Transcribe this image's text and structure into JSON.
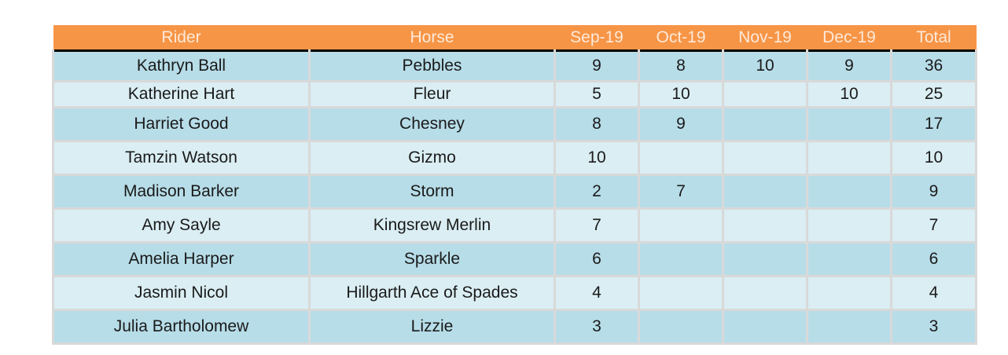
{
  "chart_data": {
    "type": "table",
    "columns": [
      "Rider",
      "Horse",
      "Sep-19",
      "Oct-19",
      "Nov-19",
      "Dec-19",
      "Total"
    ],
    "rows": [
      [
        "Kathryn Ball",
        "Pebbles",
        "9",
        "8",
        "10",
        "9",
        "36"
      ],
      [
        "Katherine Hart",
        "Fleur",
        "5",
        "10",
        "",
        "10",
        "25"
      ],
      [
        "Harriet Good",
        "Chesney",
        "8",
        "9",
        "",
        "",
        "17"
      ],
      [
        "Tamzin Watson",
        "Gizmo",
        "10",
        "",
        "",
        "",
        "10"
      ],
      [
        "Madison Barker",
        "Storm",
        "2",
        "7",
        "",
        "",
        "9"
      ],
      [
        "Amy Sayle",
        "Kingsrew Merlin",
        "7",
        "",
        "",
        "",
        "7"
      ],
      [
        "Amelia Harper",
        "Sparkle",
        "6",
        "",
        "",
        "",
        "6"
      ],
      [
        "Jasmin Nicol",
        "Hillgarth Ace of Spades",
        "4",
        "",
        "",
        "",
        "4"
      ],
      [
        "Julia Bartholomew",
        "Lizzie",
        "3",
        "",
        "",
        "",
        "3"
      ]
    ],
    "colors": {
      "header_bg": "#f79546",
      "header_text": "#fde9d9",
      "row_dark": "#b7dde8",
      "row_light": "#daeef3",
      "grid": "#d9d9d9"
    }
  }
}
